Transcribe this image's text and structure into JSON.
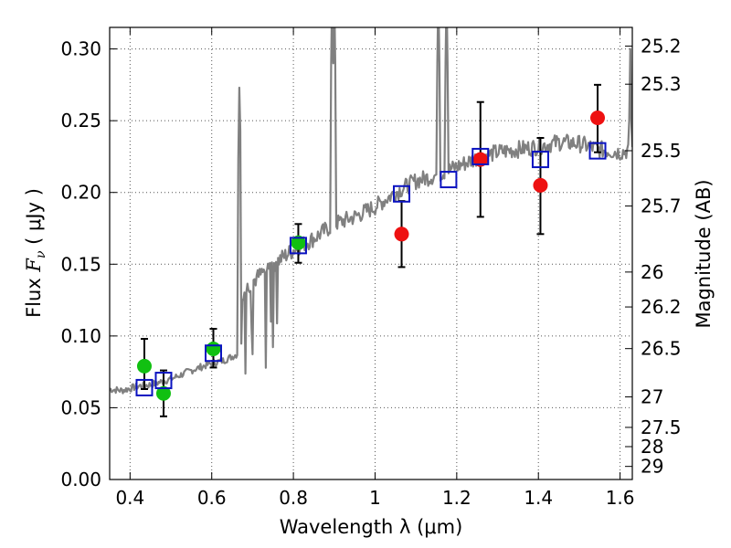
{
  "chart_data": {
    "type": "scatter",
    "xlabel": "Wavelength  λ (μm)",
    "ylabel": "Flux  F_ν  ( μJy )",
    "ylabel_parts": {
      "pre": "Flux  ",
      "var": "F",
      "sub": "ν",
      "post": "  ( μJy )"
    },
    "ylabel_right": "Magnitude (AB)",
    "xlim": [
      0.35,
      1.63
    ],
    "ylim": [
      0.0,
      0.315
    ],
    "grid": true,
    "x_ticks": [
      0.4,
      0.6,
      0.8,
      1.0,
      1.2,
      1.4,
      1.6
    ],
    "x_tick_labels": [
      "0.4",
      "0.6",
      "0.8",
      "1",
      "1.2",
      "1.4",
      "1.6"
    ],
    "y_ticks": [
      0.0,
      0.05,
      0.1,
      0.15,
      0.2,
      0.25,
      0.3
    ],
    "y_tick_labels": [
      "0.00",
      "0.05",
      "0.10",
      "0.15",
      "0.20",
      "0.25",
      "0.30"
    ],
    "mag_ticks": [
      25.2,
      25.3,
      25.5,
      25.7,
      26,
      26.2,
      26.5,
      27,
      27.5,
      28,
      29
    ],
    "mag_tick_labels": [
      "25.2",
      "25.3",
      "25.5",
      "25.7",
      "26",
      "26.2",
      "26.5",
      "27",
      "27.5",
      "28",
      "29"
    ],
    "colors": {
      "spectrum": "#808080",
      "green_points": "#11c011",
      "red_points": "#ee1111",
      "model_squares": "#0a12c0",
      "error_bars": "#000000",
      "grid": "#555555"
    },
    "series": [
      {
        "name": "model spectrum",
        "kind": "line",
        "anchors": [
          [
            0.35,
            0.063
          ],
          [
            0.38,
            0.062
          ],
          [
            0.42,
            0.065
          ],
          [
            0.45,
            0.066
          ],
          [
            0.5,
            0.07
          ],
          [
            0.55,
            0.076
          ],
          [
            0.6,
            0.081
          ],
          [
            0.63,
            0.083
          ],
          [
            0.66,
            0.087
          ],
          [
            0.667,
            0.088
          ],
          [
            0.67,
            0.128
          ],
          [
            0.7,
            0.138
          ],
          [
            0.75,
            0.15
          ],
          [
            0.8,
            0.16
          ],
          [
            0.85,
            0.168
          ],
          [
            0.9,
            0.178
          ],
          [
            0.95,
            0.183
          ],
          [
            1.0,
            0.19
          ],
          [
            1.05,
            0.2
          ],
          [
            1.1,
            0.208
          ],
          [
            1.15,
            0.212
          ],
          [
            1.2,
            0.218
          ],
          [
            1.25,
            0.224
          ],
          [
            1.3,
            0.228
          ],
          [
            1.35,
            0.23
          ],
          [
            1.4,
            0.232
          ],
          [
            1.45,
            0.235
          ],
          [
            1.5,
            0.234
          ],
          [
            1.55,
            0.23
          ],
          [
            1.6,
            0.228
          ],
          [
            1.63,
            0.23
          ]
        ],
        "spikes": [
          {
            "x": 0.668,
            "y": 0.283
          },
          {
            "x": 0.895,
            "y": 0.34
          },
          {
            "x": 0.9,
            "y": 0.34
          },
          {
            "x": 1.155,
            "y": 0.34
          },
          {
            "x": 1.175,
            "y": 0.34
          },
          {
            "x": 1.625,
            "y": 0.3
          }
        ]
      },
      {
        "name": "observed (green)",
        "kind": "points",
        "x": [
          0.435,
          0.482,
          0.604,
          0.812
        ],
        "y": [
          0.079,
          0.06,
          0.091,
          0.165
        ],
        "yerr_low": [
          0.063,
          0.044,
          0.078,
          0.151
        ],
        "yerr_high": [
          0.098,
          0.076,
          0.105,
          0.178
        ]
      },
      {
        "name": "observed (red)",
        "kind": "points",
        "x": [
          1.065,
          1.258,
          1.405,
          1.545
        ],
        "y": [
          0.171,
          0.223,
          0.205,
          0.252
        ],
        "yerr_low": [
          0.148,
          0.183,
          0.171,
          0.228
        ],
        "yerr_high": [
          0.194,
          0.263,
          0.238,
          0.275
        ]
      },
      {
        "name": "model photometry",
        "kind": "squares",
        "x": [
          0.435,
          0.482,
          0.604,
          0.812,
          1.065,
          1.18,
          1.258,
          1.405,
          1.545
        ],
        "y": [
          0.064,
          0.069,
          0.088,
          0.163,
          0.199,
          0.209,
          0.225,
          0.223,
          0.229
        ]
      }
    ]
  }
}
